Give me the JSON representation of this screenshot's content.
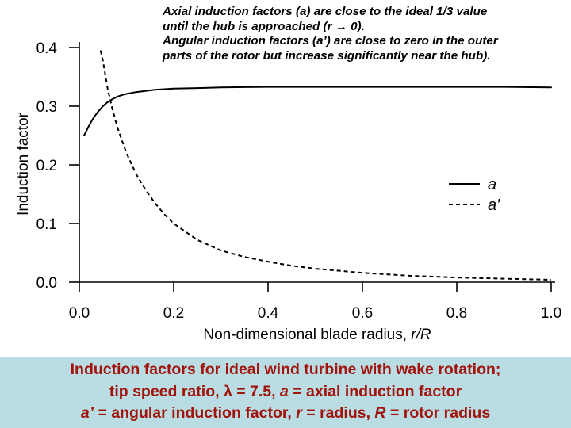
{
  "annotation": {
    "line1": "Axial induction factors (a) are close to the ideal 1/3 value",
    "line2": "until the hub is approached (r → 0).",
    "line3": "Angular induction factors (a’) are close to zero in the outer",
    "line4": "parts of the rotor but increase significantly near the hub)."
  },
  "caption": {
    "line1": "Induction factors for ideal wind turbine with wake rotation;",
    "line2_a": "tip speed ratio, ",
    "line2_lambda": "λ",
    "line2_b": " = 7.5, ",
    "line2_a_var": "a",
    "line2_c": " = axial induction factor",
    "line3_avar": "a’",
    "line3_b": " = angular induction factor, ",
    "line3_r": "r",
    "line3_c": " = radius, ",
    "line3_R": "R",
    "line3_d": " = rotor radius"
  },
  "chart_data": {
    "type": "line",
    "xlabel_text": "Non-dimensional blade radius, ",
    "xlabel_var": "r/R",
    "ylabel": "Induction factor",
    "xlim": [
      0.0,
      1.0
    ],
    "ylim": [
      0.0,
      0.4
    ],
    "xticks": [
      "0.0",
      "0.2",
      "0.4",
      "0.6",
      "0.8",
      "1.0"
    ],
    "yticks": [
      "0.0",
      "0.1",
      "0.2",
      "0.3",
      "0.4"
    ],
    "grid": false,
    "legend_position": "right",
    "series": [
      {
        "name": "a",
        "style": "solid",
        "x": [
          0.01,
          0.02,
          0.03,
          0.04,
          0.05,
          0.06,
          0.07,
          0.08,
          0.09,
          0.1,
          0.12,
          0.14,
          0.16,
          0.18,
          0.2,
          0.25,
          0.3,
          0.35,
          0.4,
          0.5,
          0.6,
          0.7,
          0.8,
          0.9,
          1.0
        ],
        "values": [
          0.25,
          0.266,
          0.28,
          0.291,
          0.3,
          0.307,
          0.312,
          0.316,
          0.319,
          0.321,
          0.324,
          0.326,
          0.328,
          0.329,
          0.33,
          0.331,
          0.332,
          0.3325,
          0.333,
          0.333,
          0.333,
          0.333,
          0.333,
          0.333,
          0.332
        ]
      },
      {
        "name": "a'",
        "style": "dashed",
        "x": [
          0.045,
          0.05,
          0.06,
          0.07,
          0.08,
          0.09,
          0.1,
          0.12,
          0.14,
          0.16,
          0.18,
          0.2,
          0.25,
          0.3,
          0.35,
          0.4,
          0.45,
          0.5,
          0.6,
          0.7,
          0.8,
          0.9,
          1.0
        ],
        "values": [
          0.395,
          0.377,
          0.33,
          0.295,
          0.266,
          0.242,
          0.22,
          0.185,
          0.158,
          0.135,
          0.116,
          0.1,
          0.072,
          0.054,
          0.043,
          0.035,
          0.028,
          0.023,
          0.016,
          0.011,
          0.008,
          0.006,
          0.004
        ]
      }
    ]
  }
}
